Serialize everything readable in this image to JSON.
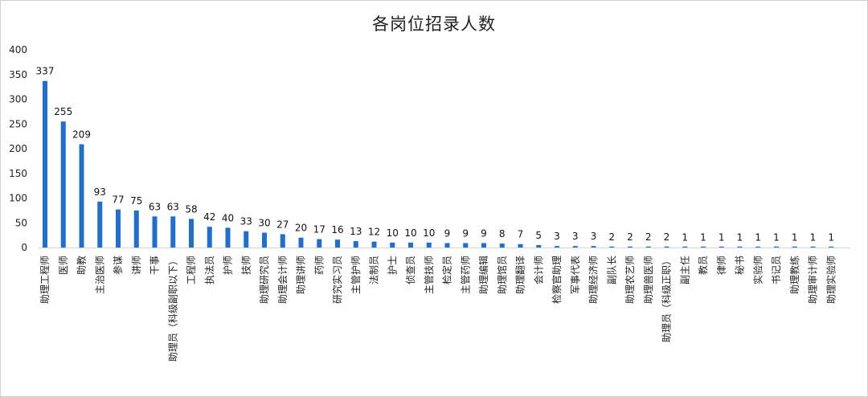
{
  "chart_data": {
    "type": "bar",
    "title": "各岗位招录人数",
    "xlabel": "",
    "ylabel": "",
    "ylim": [
      0,
      400
    ],
    "yticks": [
      0,
      50,
      100,
      150,
      200,
      250,
      300,
      350,
      400
    ],
    "grid": false,
    "legend": "none",
    "bar_color": "#1f6fd0",
    "categories": [
      "助理工程师",
      "医师",
      "助教",
      "主治医师",
      "参谋",
      "讲师",
      "干事",
      "助理员（科级副职以下）",
      "工程师",
      "执法员",
      "护师",
      "技师",
      "助理研究员",
      "助理会计师",
      "助理讲师",
      "药师",
      "研究实习员",
      "主管护师",
      "法制员",
      "护士",
      "侦查员",
      "主管技师",
      "检定员",
      "主管药师",
      "助理编辑",
      "助理馆员",
      "助理翻译",
      "会计师",
      "检察官助理",
      "军事代表",
      "助理经济师",
      "副队长",
      "助理农艺师",
      "助理兽医师",
      "助理员（科级正职）",
      "副主任",
      "教员",
      "律师",
      "秘书",
      "实验师",
      "书记员",
      "助理教练",
      "助理审计师",
      "助理实验师"
    ],
    "values": [
      337,
      255,
      209,
      93,
      77,
      75,
      63,
      63,
      58,
      42,
      40,
      33,
      30,
      27,
      20,
      17,
      16,
      13,
      12,
      10,
      10,
      10,
      9,
      9,
      9,
      8,
      7,
      5,
      3,
      3,
      3,
      2,
      2,
      2,
      2,
      1,
      1,
      1,
      1,
      1,
      1,
      1,
      1,
      1
    ]
  }
}
